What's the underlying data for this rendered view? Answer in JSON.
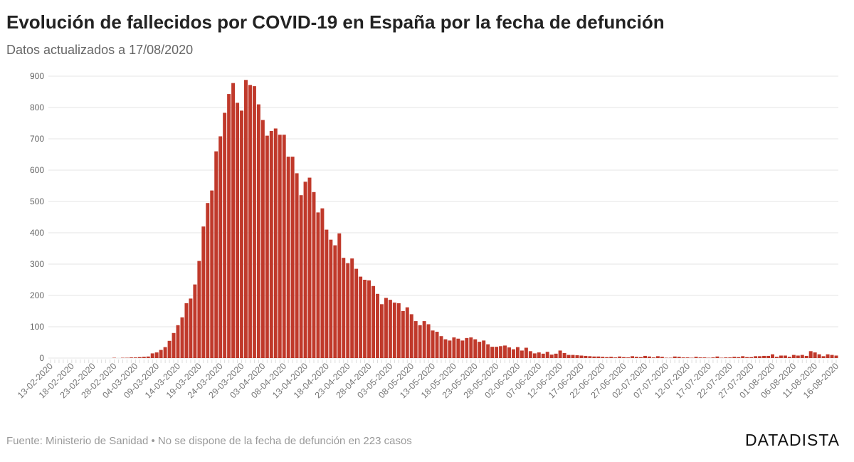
{
  "chart_data": {
    "type": "bar",
    "title": "Evolución de fallecidos por COVID-19 en España por la fecha de defunción",
    "subtitle": "Datos actualizados a 17/08/2020",
    "xlabel": "",
    "ylabel": "",
    "start_date": "13-02-2020",
    "end_date": "16-08-2020",
    "ylim": [
      0,
      900
    ],
    "yticks": [
      0,
      100,
      200,
      300,
      400,
      500,
      600,
      700,
      800,
      900
    ],
    "xtick_labels": [
      "13-02-2020",
      "18-02-2020",
      "23-02-2020",
      "28-02-2020",
      "04-03-2020",
      "09-03-2020",
      "14-03-2020",
      "19-03-2020",
      "24-03-2020",
      "29-03-2020",
      "03-04-2020",
      "08-04-2020",
      "13-04-2020",
      "18-04-2020",
      "23-04-2020",
      "28-04-2020",
      "03-05-2020",
      "08-05-2020",
      "13-05-2020",
      "18-05-2020",
      "23-05-2020",
      "28-05-2020",
      "02-06-2020",
      "07-06-2020",
      "12-06-2020",
      "17-06-2020",
      "22-06-2020",
      "27-06-2020",
      "02-07-2020",
      "07-07-2020",
      "12-07-2020",
      "17-07-2020",
      "22-07-2020",
      "27-07-2020",
      "01-08-2020",
      "06-08-2020",
      "11-08-2020",
      "16-08-2020"
    ],
    "grid": true,
    "color": "#c0392b",
    "values": [
      0,
      0,
      0,
      0,
      0,
      0,
      0,
      0,
      0,
      0,
      0,
      0,
      0,
      0,
      0,
      1,
      0,
      1,
      1,
      2,
      2,
      3,
      4,
      5,
      15,
      18,
      26,
      35,
      55,
      80,
      105,
      130,
      175,
      190,
      235,
      310,
      420,
      495,
      535,
      660,
      708,
      783,
      843,
      878,
      815,
      790,
      888,
      872,
      868,
      810,
      760,
      710,
      725,
      733,
      713,
      713,
      643,
      643,
      590,
      520,
      563,
      576,
      530,
      465,
      478,
      410,
      378,
      360,
      398,
      320,
      303,
      318,
      285,
      260,
      250,
      248,
      230,
      205,
      172,
      192,
      186,
      177,
      175,
      150,
      162,
      140,
      118,
      105,
      118,
      108,
      88,
      84,
      70,
      60,
      56,
      66,
      62,
      56,
      64,
      66,
      60,
      52,
      56,
      44,
      36,
      36,
      38,
      40,
      34,
      28,
      35,
      24,
      33,
      22,
      15,
      18,
      14,
      20,
      11,
      14,
      24,
      16,
      10,
      10,
      9,
      8,
      7,
      6,
      5,
      5,
      4,
      3,
      4,
      2,
      5,
      3,
      2,
      6,
      4,
      3,
      7,
      5,
      2,
      6,
      4,
      1,
      1,
      5,
      4,
      2,
      2,
      1,
      4,
      2,
      2,
      1,
      2,
      5,
      1,
      2,
      2,
      4,
      3,
      6,
      3,
      3,
      6,
      6,
      7,
      7,
      12,
      4,
      8,
      8,
      4,
      10,
      8,
      10,
      7,
      22,
      18,
      12,
      6,
      12,
      10,
      8
    ]
  },
  "footer": {
    "source": "Fuente: Ministerio de Sanidad • No se dispone de la fecha de defunción en 223 casos",
    "brand": "DATADISTA"
  }
}
